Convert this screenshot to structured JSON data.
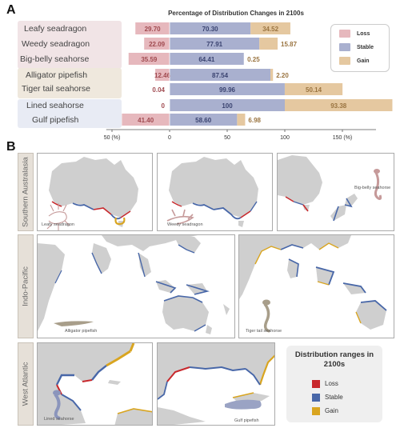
{
  "panels": {
    "a": "A",
    "b": "B"
  },
  "chart_data": {
    "type": "bar",
    "title": "Percentage of Distribution Changes in 2100s",
    "categories": [
      "Leafy seadragon",
      "Weedy seadragon",
      "Big-belly seahorse",
      "Alligator pipefish",
      "Tiger tail seahorse",
      "Lined seahorse",
      "Gulf pipefish"
    ],
    "series": [
      {
        "name": "Loss",
        "values": [
          29.7,
          22.09,
          35.59,
          12.46,
          0.04,
          0,
          41.4
        ]
      },
      {
        "name": "Stable",
        "values": [
          70.3,
          77.91,
          64.41,
          87.54,
          99.96,
          100,
          58.6
        ]
      },
      {
        "name": "Gain",
        "values": [
          34.52,
          15.87,
          0.25,
          2.2,
          50.14,
          93.38,
          6.98
        ]
      }
    ],
    "value_labels": {
      "loss": [
        "29.70",
        "22.09",
        "35.59",
        "12.46",
        "0.04",
        "0",
        "41.40"
      ],
      "stable": [
        "70.30",
        "77.91",
        "64.41",
        "87.54",
        "99.96",
        "100",
        "58.60"
      ],
      "gain": [
        "34.52",
        "15.87",
        "0.25",
        "2.20",
        "50.14",
        "93.38",
        "6.98"
      ]
    },
    "xticks": [
      {
        "value": -50,
        "label": "50 (%)"
      },
      {
        "value": 0,
        "label": "0"
      },
      {
        "value": 50,
        "label": "50"
      },
      {
        "value": 100,
        "label": "100"
      },
      {
        "value": 150,
        "label": "150 (%)"
      }
    ],
    "xlim": [
      -50,
      170
    ],
    "legend_position": "top-right",
    "colors": {
      "loss": "#e6b8bd",
      "stable": "#a9b0cf",
      "gain": "#e5c8a0"
    }
  },
  "groups": [
    {
      "color": "#f1e4e6"
    },
    {
      "color": "#efe8dd"
    },
    {
      "color": "#e8ebf4"
    }
  ],
  "regions": [
    "Southern Australasia",
    "Indo-Pacific",
    "West Atlantic"
  ],
  "maps": {
    "leafy": "Leafy seadragon",
    "weedy": "Weedy seadragon",
    "bigbelly": "Big-belly seahorse",
    "alligator": "Alligator pipefish",
    "tiger": "Tiger tail seahorse",
    "lined": "Lined seahorse",
    "gulf": "Gulf pipefish"
  },
  "distribution_legend": {
    "title": "Distribution ranges in 2100s",
    "items": [
      {
        "label": "Loss",
        "color": "#c8282c"
      },
      {
        "label": "Stable",
        "color": "#4867a8"
      },
      {
        "label": "Gain",
        "color": "#d9a520"
      }
    ]
  }
}
